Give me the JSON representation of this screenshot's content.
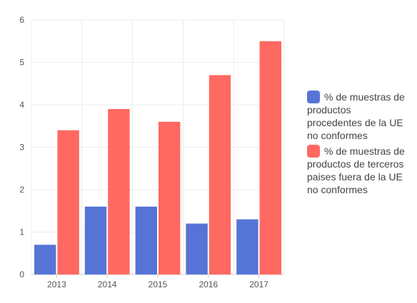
{
  "chart_data": {
    "type": "bar",
    "categories": [
      "2013",
      "2014",
      "2015",
      "2016",
      "2017"
    ],
    "series": [
      {
        "name": "% de muestras de productos procedentes de la UE no conformes",
        "values": [
          0.7,
          1.6,
          1.6,
          1.2,
          1.3
        ],
        "color": "#5574d6"
      },
      {
        "name": "% de muestras de productos de terceros paises fuera de la UE no conformes",
        "values": [
          3.4,
          3.9,
          3.6,
          4.7,
          5.5
        ],
        "color": "#ff6961"
      }
    ],
    "yticks": [
      "0",
      "1",
      "2",
      "3",
      "4",
      "5",
      "6"
    ],
    "ylim": [
      0,
      6
    ],
    "grid": true,
    "legend_position": "right"
  }
}
